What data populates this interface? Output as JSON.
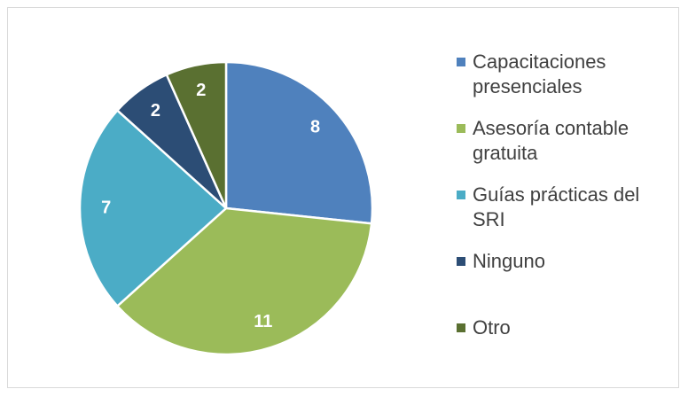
{
  "chart_data": {
    "type": "pie",
    "categories": [
      "Capacitaciones presenciales",
      "Asesoría contable gratuita",
      "Guías prácticas del SRI",
      "Ninguno",
      "Otro"
    ],
    "values": [
      8,
      11,
      7,
      2,
      2
    ],
    "colors": [
      "#4f81bd",
      "#9bbb59",
      "#4bacc6",
      "#2c4d75",
      "#5a7031"
    ],
    "legend": "right"
  }
}
